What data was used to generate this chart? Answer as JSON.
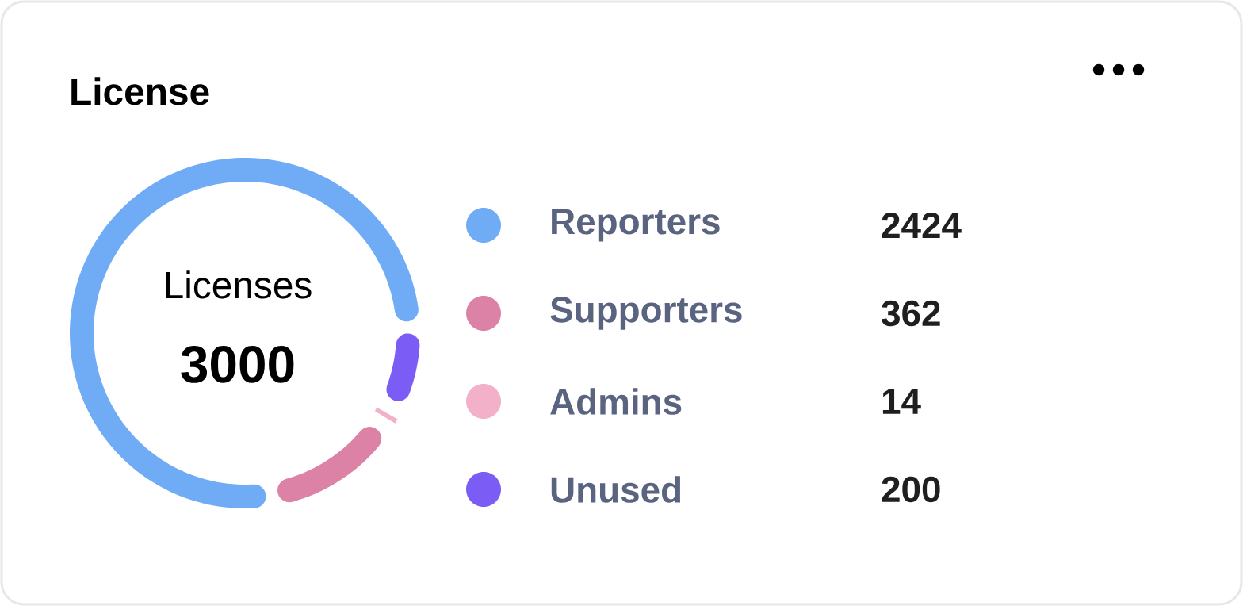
{
  "chart_data": {
    "type": "donut",
    "title": "License",
    "categories": [
      "Reporters",
      "Supporters",
      "Admins",
      "Unused"
    ],
    "values": [
      2424,
      362,
      14,
      200
    ],
    "colors": [
      "#70acf6",
      "#dc82a6",
      "#f2b1c9",
      "#7b5cf5"
    ],
    "value_labels": [
      "2424",
      "362",
      "14",
      "200"
    ],
    "legend": "right",
    "annotations": [
      "Licenses",
      "3000"
    ]
  }
}
